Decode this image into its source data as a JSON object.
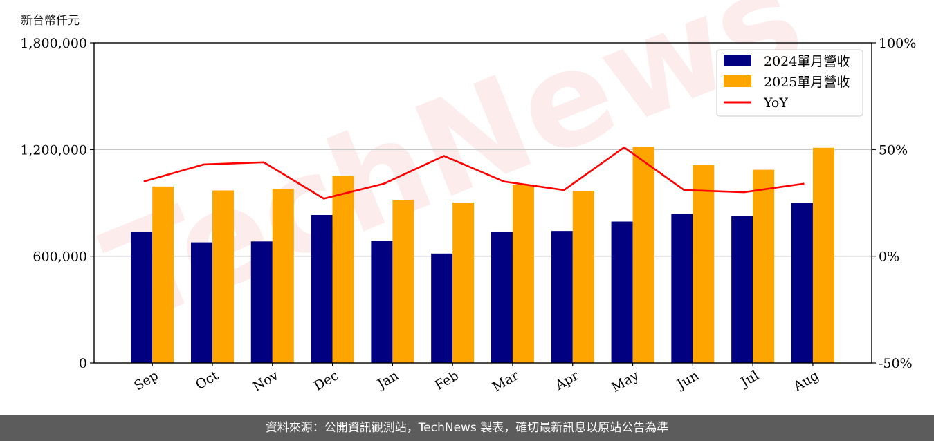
{
  "unit_label": "新台幣仟元",
  "watermark": "TechNews",
  "footer": "資料來源：公開資訊觀測站，TechNews 製表，確切最新訊息以原站公告為準",
  "colors": {
    "bar_2024": "#000080",
    "bar_2025": "#FFA500",
    "yoy_line": "#FF0000",
    "footer_bg": "#5c5c5c",
    "watermark": "#e86b6b"
  },
  "chart_data": {
    "type": "bar",
    "categories": [
      "Sep",
      "Oct",
      "Nov",
      "Dec",
      "Jan",
      "Feb",
      "Mar",
      "Apr",
      "May",
      "Jun",
      "Jul",
      "Aug"
    ],
    "series": [
      {
        "name": "2024單月營收",
        "type": "bar",
        "axis": "left",
        "values": [
          735000,
          678000,
          683000,
          832000,
          686000,
          615000,
          735000,
          742000,
          795000,
          838000,
          825000,
          900000
        ]
      },
      {
        "name": "2025單月營收",
        "type": "bar",
        "axis": "left",
        "values": [
          992000,
          970000,
          978000,
          1053000,
          917000,
          902000,
          1003000,
          968000,
          1215000,
          1113000,
          1086000,
          1210000
        ]
      },
      {
        "name": "YoY",
        "type": "line",
        "axis": "right",
        "values": [
          35,
          43,
          44,
          27,
          34,
          47,
          35,
          31,
          51,
          31,
          30,
          34
        ]
      }
    ],
    "y_left": {
      "min": 0,
      "max": 1800000,
      "ticks": [
        0,
        600000,
        1200000,
        1800000
      ],
      "tick_labels": [
        "0",
        "600,000",
        "1,200,000",
        "1,800,000"
      ]
    },
    "y_right": {
      "min": -50,
      "max": 100,
      "ticks": [
        -50,
        0,
        50,
        100
      ],
      "tick_labels": [
        "-50%",
        "0%",
        "50%",
        "100%"
      ]
    },
    "grid": "horizontal",
    "legend": "top-right"
  }
}
